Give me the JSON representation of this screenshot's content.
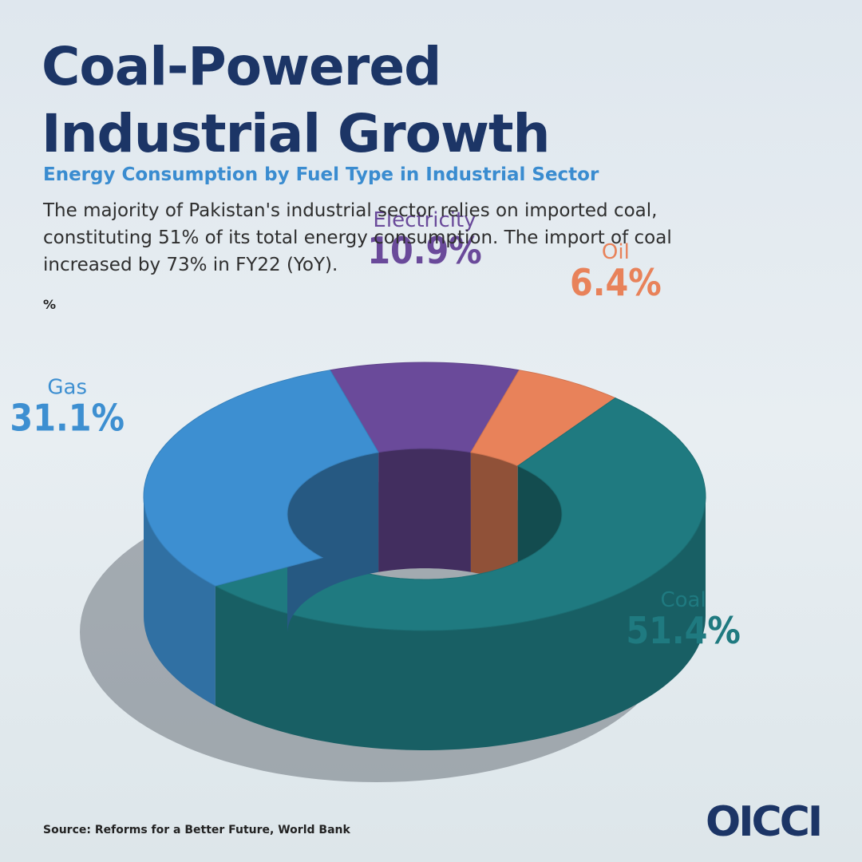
{
  "chart_data": {
    "type": "donut",
    "title": "Coal-Powered Industrial Growth",
    "subtitle": "Energy Consumption by Fuel Type in Industrial Sector",
    "description": "The majority of Pakistan's industrial sector relies on imported coal, constituting 51% of its total energy consumption. The import of coal increased by 73% in FY22 (YoY).",
    "unit_label": "%",
    "categories": [
      "Electricity",
      "Oil",
      "Coal",
      "Gas"
    ],
    "values": [
      10.9,
      6.4,
      51.4,
      31.1
    ],
    "value_labels": [
      "10.9%",
      "6.4%",
      "51.4%",
      "31.1%"
    ],
    "colors": [
      "#6a4a9a",
      "#e8825a",
      "#1f7a80",
      "#3d8fd1"
    ],
    "source": "Source: Reforms for a Better Future, World Bank",
    "logo": "OICCI"
  }
}
